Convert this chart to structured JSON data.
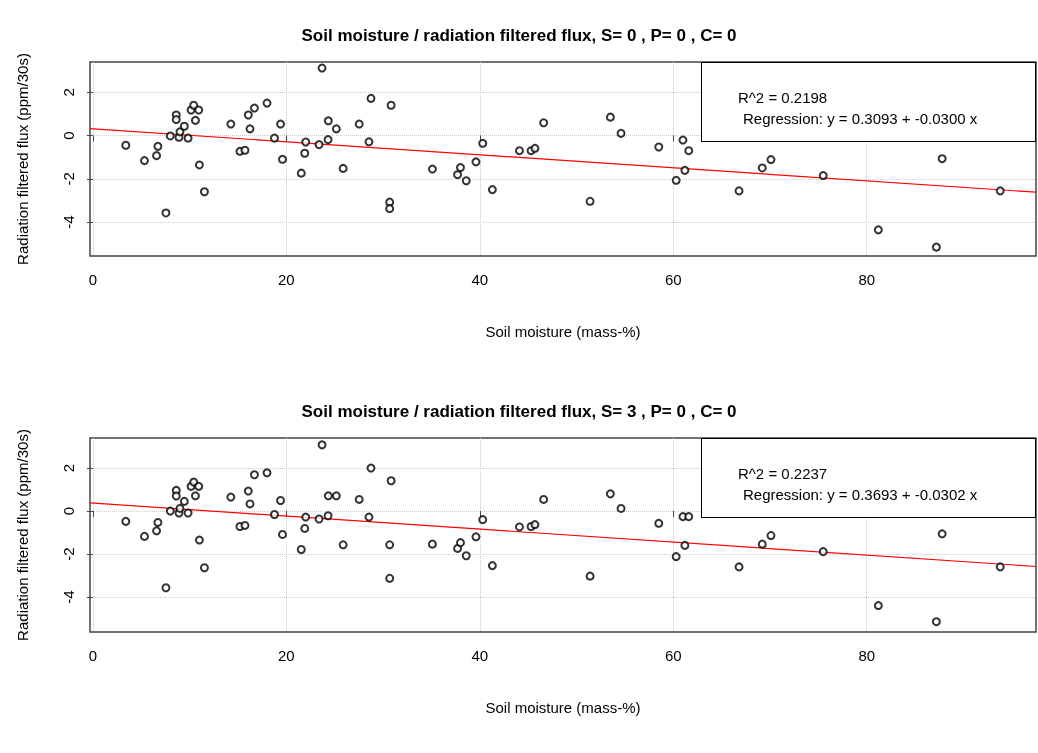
{
  "chart_data": [
    {
      "type": "scatter",
      "title": "Soil moisture / radiation filtered flux, S= 0 , P= 0 , C= 0",
      "xlabel": "Soil moisture (mass-%)",
      "ylabel": "Radiation filtered flux (ppm/30s)",
      "xlim": [
        -0.3,
        97.5
      ],
      "ylim": [
        -5.57,
        3.4
      ],
      "xticks": [
        0,
        20,
        40,
        60,
        80
      ],
      "yticks": [
        -4,
        -2,
        0,
        2
      ],
      "grid": true,
      "marker": "circle",
      "annotations": [
        "R^2 = 0.2198",
        "Regression: y = 0.3093 + -0.0300 x"
      ],
      "series": [
        {
          "color": "#000000",
          "x": [
            3.4,
            5.33,
            6.72,
            6.58,
            7.55,
            8.0,
            8.62,
            8.62,
            8.9,
            9.0,
            9.45,
            9.84,
            10.15,
            10.42,
            10.6,
            10.94,
            11.01,
            11.53,
            14.26,
            15.2,
            15.72,
            16.07,
            16.24,
            16.7,
            18.0,
            18.77,
            19.4,
            19.6,
            21.54,
            21.9,
            22.0,
            23.38,
            23.69,
            24.34,
            24.31,
            25.17,
            25.87,
            27.53,
            28.54,
            28.75,
            30.83,
            30.68,
            30.68,
            35.1,
            37.7,
            38.0,
            38.6,
            39.6,
            40.3,
            41.3,
            44.1,
            45.3,
            45.7,
            46.6,
            51.4,
            53.5,
            54.6,
            58.5,
            60.3,
            61.0,
            61.6,
            61.2,
            66.8,
            69.2,
            70.1,
            75.5,
            81.2,
            87.2,
            87.8,
            93.8
          ],
          "values": [
            -0.45,
            -1.16,
            -0.5,
            -0.93,
            -3.58,
            -0.02,
            0.95,
            0.74,
            -0.08,
            0.17,
            0.43,
            -0.12,
            1.18,
            1.4,
            0.7,
            1.18,
            -1.36,
            -2.6,
            0.53,
            -0.73,
            -0.68,
            0.95,
            0.31,
            1.27,
            1.5,
            -0.12,
            0.53,
            -1.1,
            -1.74,
            -0.82,
            -0.3,
            -0.42,
            3.12,
            0.68,
            -0.19,
            0.31,
            -1.52,
            0.53,
            -0.29,
            1.72,
            1.4,
            -3.08,
            -3.38,
            -1.55,
            -1.81,
            -1.48,
            -2.09,
            -1.22,
            -0.36,
            -2.5,
            -0.7,
            -0.7,
            -0.59,
            0.59,
            -3.04,
            0.85,
            0.1,
            -0.53,
            -2.07,
            -0.21,
            -0.7,
            -1.61,
            -2.56,
            -1.5,
            -1.11,
            -1.85,
            -4.36,
            -5.16,
            -1.07,
            -2.56
          ]
        },
        {
          "type": "line",
          "marker": "none",
          "color": "#ff0000",
          "x": [
            -0.3,
            97.5
          ],
          "values": [
            0.32,
            -2.62
          ]
        }
      ]
    },
    {
      "type": "scatter",
      "title": "Soil moisture / radiation filtered flux, S= 3 , P= 0 , C= 0",
      "xlabel": "Soil moisture (mass-%)",
      "ylabel": "Radiation filtered flux (ppm/30s)",
      "xlim": [
        -0.3,
        97.5
      ],
      "ylim": [
        -5.63,
        3.4
      ],
      "xticks": [
        0,
        20,
        40,
        60,
        80
      ],
      "yticks": [
        -4,
        -2,
        0,
        2
      ],
      "grid": true,
      "marker": "circle",
      "annotations": [
        "R^2 = 0.2237",
        "Regression: y = 0.3693 + -0.0302 x"
      ],
      "series": [
        {
          "color": "#000000",
          "x": [
            3.4,
            5.33,
            6.72,
            6.58,
            7.55,
            8.0,
            8.62,
            8.62,
            8.9,
            9.0,
            9.45,
            9.84,
            10.15,
            10.42,
            10.6,
            10.94,
            11.01,
            11.53,
            14.26,
            15.2,
            15.72,
            16.07,
            16.24,
            16.7,
            18.0,
            18.77,
            19.4,
            19.6,
            21.54,
            21.9,
            22.0,
            23.38,
            23.69,
            24.34,
            24.31,
            25.17,
            25.87,
            27.53,
            28.54,
            28.75,
            30.83,
            30.68,
            30.68,
            35.1,
            37.7,
            38.0,
            38.6,
            39.6,
            40.3,
            41.3,
            44.1,
            45.3,
            45.7,
            46.6,
            51.4,
            53.5,
            54.6,
            58.5,
            60.3,
            61.0,
            61.6,
            61.2,
            66.8,
            69.2,
            70.1,
            75.5,
            81.2,
            87.2,
            87.8,
            93.8
          ],
          "values": [
            -0.48,
            -1.18,
            -0.53,
            -0.92,
            -3.57,
            0.0,
            0.96,
            0.7,
            -0.09,
            0.12,
            0.45,
            -0.09,
            1.15,
            1.35,
            0.71,
            1.15,
            -1.35,
            -2.64,
            0.65,
            -0.72,
            -0.67,
            0.93,
            0.33,
            1.69,
            1.78,
            -0.16,
            0.49,
            -1.09,
            -1.79,
            -0.81,
            -0.28,
            -0.37,
            3.08,
            0.71,
            -0.22,
            0.71,
            -1.57,
            0.54,
            -0.28,
            2.0,
            1.41,
            -1.57,
            -3.13,
            -1.54,
            -1.74,
            -1.47,
            -2.08,
            -1.2,
            -0.4,
            -2.54,
            -0.74,
            -0.72,
            -0.63,
            0.54,
            -3.03,
            0.8,
            0.12,
            -0.57,
            -2.12,
            -0.26,
            -0.26,
            -1.6,
            -2.6,
            -1.54,
            -1.14,
            -1.89,
            -4.4,
            -5.15,
            -1.06,
            -2.6
          ]
        },
        {
          "type": "line",
          "marker": "none",
          "color": "#ff0000",
          "x": [
            -0.3,
            97.5
          ],
          "values": [
            0.38,
            -2.58
          ]
        }
      ]
    }
  ]
}
